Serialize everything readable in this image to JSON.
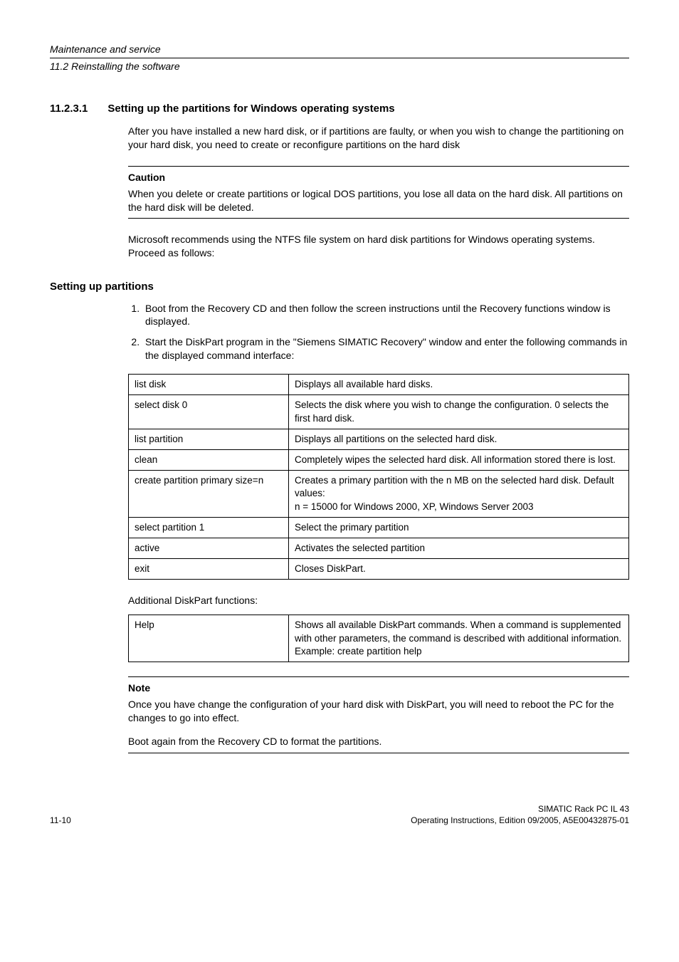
{
  "header": {
    "top": "Maintenance and service",
    "sub": "11.2 Reinstalling the software"
  },
  "section": {
    "num": "11.2.3.1",
    "title": "Setting up the partitions for Windows operating systems",
    "intro": "After you have installed a new hard disk, or if partitions are faulty, or when you wish to change the partitioning on your hard disk, you need to create or reconfigure partitions on the hard disk"
  },
  "caution": {
    "label": "Caution",
    "text": "When you delete or create partitions or logical DOS partitions, you lose all data on the hard disk. All partitions on the hard disk will be deleted."
  },
  "after_caution": "Microsoft recommends using the NTFS file system on hard disk partitions for Windows operating systems. Proceed as follows:",
  "partitions": {
    "heading": "Setting up partitions",
    "steps": [
      "Boot from the Recovery CD and then follow the screen instructions until the Recovery functions window is displayed.",
      "Start the DiskPart program in the \"Siemens SIMATIC Recovery\" window and enter the following commands in the displayed command interface:"
    ]
  },
  "cmd_table": {
    "rows": [
      [
        "list disk",
        "Displays all available hard disks."
      ],
      [
        "select disk 0",
        "Selects the disk where you wish to change the configuration. 0 selects the first hard disk."
      ],
      [
        "list partition",
        "Displays all partitions on the selected hard disk."
      ],
      [
        "clean",
        "Completely wipes the selected hard disk. All information stored there is lost."
      ],
      [
        "create partition primary size=n",
        "Creates a primary partition with the n MB on the selected hard disk. Default values:\nn = 15000 for Windows 2000, XP, Windows Server 2003"
      ],
      [
        "select partition 1",
        "Select the primary partition"
      ],
      [
        "active",
        "Activates the selected partition"
      ],
      [
        "exit",
        "Closes DiskPart."
      ]
    ]
  },
  "additional_label": "Additional DiskPart functions:",
  "help_table": {
    "rows": [
      [
        "Help",
        "Shows all available DiskPart commands. When a command is supplemented with other parameters, the command is described with additional information.\nExample: create partition help"
      ]
    ]
  },
  "note": {
    "label": "Note",
    "p1": "Once you have change the configuration of your hard disk with DiskPart, you will need to reboot the PC for the changes to go into effect.",
    "p2": "Boot again from the Recovery CD to format the partitions."
  },
  "footer": {
    "left": "11-10",
    "right1": "SIMATIC Rack PC IL 43",
    "right2": "Operating Instructions, Edition 09/2005, A5E00432875-01"
  }
}
